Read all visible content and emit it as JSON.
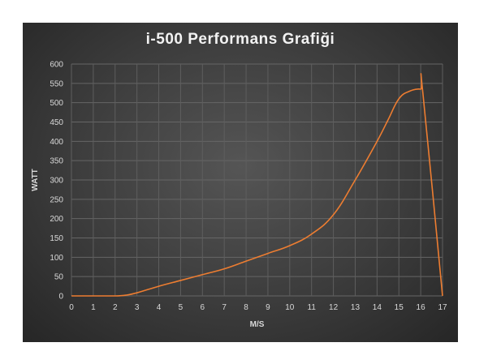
{
  "chart_data": {
    "type": "line",
    "title": "i-500 Performans Grafiği",
    "xlabel": "M/S",
    "ylabel": "WATT",
    "xlim": [
      0,
      17
    ],
    "ylim": [
      0,
      600
    ],
    "x_ticks": [
      0,
      1,
      2,
      3,
      4,
      5,
      6,
      7,
      8,
      9,
      10,
      11,
      12,
      13,
      14,
      15,
      16,
      17
    ],
    "y_ticks": [
      0,
      50,
      100,
      150,
      200,
      250,
      300,
      350,
      400,
      450,
      500,
      550,
      600
    ],
    "grid": true,
    "series": [
      {
        "color": "#ed7d31",
        "x": [
          0,
          1,
          2,
          2.5,
          3,
          4,
          5,
          6,
          7,
          8,
          9,
          10,
          11,
          12,
          13,
          14,
          14.5,
          15,
          15.5,
          16,
          16.1,
          17
        ],
        "y": [
          0,
          0,
          0,
          2,
          8,
          25,
          40,
          55,
          70,
          90,
          110,
          130,
          160,
          210,
          300,
          400,
          455,
          510,
          530,
          535,
          525,
          0
        ]
      }
    ]
  }
}
